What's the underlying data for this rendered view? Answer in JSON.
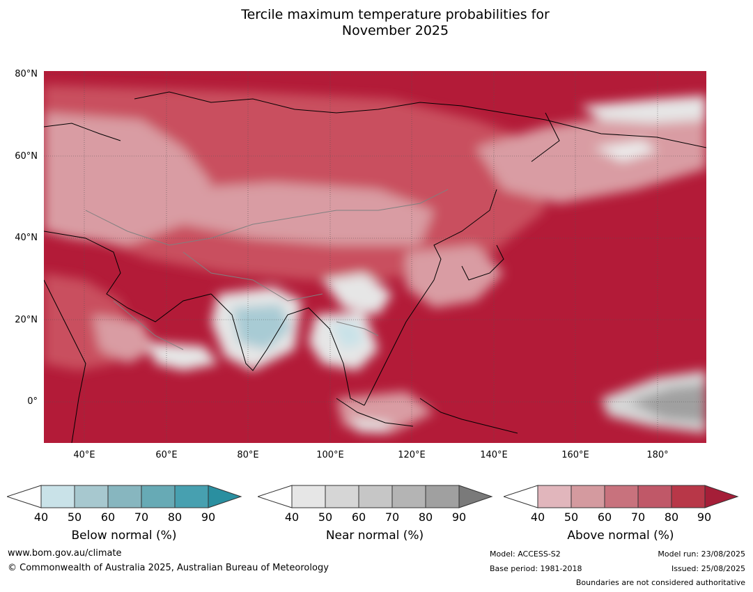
{
  "title_line1": "Tercile maximum temperature probabilities for",
  "title_line2": "November 2025",
  "map": {
    "lat_labels": [
      "80°N",
      "60°N",
      "40°N",
      "20°N",
      "0°"
    ],
    "lon_labels": [
      "40°E",
      "60°E",
      "80°E",
      "100°E",
      "120°E",
      "140°E",
      "160°E",
      "180°"
    ],
    "lat_values": [
      80,
      60,
      40,
      20,
      0
    ],
    "lon_values": [
      40,
      60,
      80,
      100,
      120,
      140,
      160,
      180
    ],
    "lat_range": [
      -10,
      81
    ],
    "lon_range": [
      30,
      192
    ],
    "colors": {
      "above_base": "#b31b38",
      "above_mid": "#c9505f",
      "above_low": "#d99ca3",
      "near": "#e6e6e6",
      "below": "#a8cbd4",
      "near_dark": "#a0a0a0"
    }
  },
  "colorbars": {
    "ticks": [
      "40",
      "50",
      "60",
      "70",
      "80",
      "90"
    ],
    "below": {
      "label": "Below normal (%)",
      "colors": [
        "#c9e2e8",
        "#a7c8cf",
        "#87b6bf",
        "#67aab5",
        "#47a0b0",
        "#2a8fa0"
      ]
    },
    "near": {
      "label": "Near normal (%)",
      "colors": [
        "#e6e6e6",
        "#d6d6d6",
        "#c6c6c6",
        "#b4b4b4",
        "#a0a0a0",
        "#7a7a7a"
      ]
    },
    "above": {
      "label": "Above normal (%)",
      "colors": [
        "#e1b6bc",
        "#d49a9f",
        "#c8727d",
        "#c05868",
        "#b83748",
        "#a51e38"
      ]
    }
  },
  "footer": {
    "url": "www.bom.gov.au/climate",
    "copyright": "© Commonwealth of Australia 2025, Australian Bureau of Meteorology",
    "model": "Model: ACCESS-S2",
    "base_period": "Base period: 1981-2018",
    "model_run": "Model run: 23/08/2025",
    "issued": "Issued: 25/08/2025",
    "boundaries": "Boundaries are not considered authoritative"
  }
}
